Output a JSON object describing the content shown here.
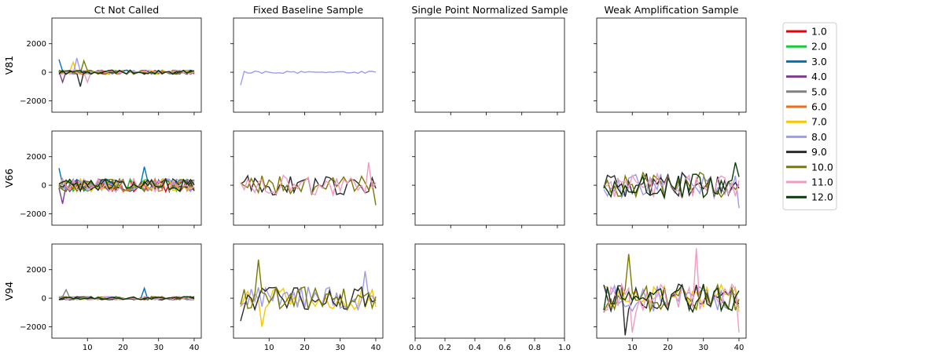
{
  "chart_data": {
    "type": "line",
    "layout": "grid-3x4",
    "columns": [
      "Ct Not Called",
      "Fixed Baseline Sample",
      "Single Point Normalized Sample",
      "Weak Amplification Sample"
    ],
    "rows": [
      "V81",
      "V66",
      "V94"
    ],
    "x_ticks": [
      10,
      20,
      30,
      40
    ],
    "y_ticks": [
      -2000,
      0,
      2000
    ],
    "xlim": [
      0,
      42
    ],
    "ylim": [
      -2800,
      3800
    ],
    "empty_panel_x_ticks": [
      "0.0",
      "0.2",
      "0.4",
      "0.6",
      "0.8",
      "1.0"
    ],
    "x_range": [
      2,
      40
    ],
    "legend": {
      "position": "right",
      "entries": [
        {
          "label": "1.0",
          "color": "#e8000b"
        },
        {
          "label": "2.0",
          "color": "#1ac938"
        },
        {
          "label": "3.0",
          "color": "#0173b2"
        },
        {
          "label": "4.0",
          "color": "#7d3b91"
        },
        {
          "label": "5.0",
          "color": "#808080"
        },
        {
          "label": "6.0",
          "color": "#f06c12"
        },
        {
          "label": "7.0",
          "color": "#f8c600"
        },
        {
          "label": "8.0",
          "color": "#9b9bf0"
        },
        {
          "label": "9.0",
          "color": "#2b2b2b"
        },
        {
          "label": "10.0",
          "color": "#7a7a00"
        },
        {
          "label": "11.0",
          "color": "#f29ac2"
        },
        {
          "label": "12.0",
          "color": "#0a3a0a"
        }
      ]
    },
    "panels": [
      {
        "row": "V81",
        "column": "Ct Not Called",
        "series": [
          "1.0",
          "2.0",
          "3.0",
          "4.0",
          "5.0",
          "6.0",
          "7.0",
          "8.0",
          "9.0",
          "10.0",
          "11.0",
          "12.0"
        ],
        "amplitude": 150,
        "spikes": [
          [
            2,
            900
          ],
          [
            3,
            -700
          ],
          [
            6,
            700
          ],
          [
            7,
            1000
          ],
          [
            8,
            -1000
          ],
          [
            9,
            800
          ],
          [
            10,
            -700
          ]
        ]
      },
      {
        "row": "V81",
        "column": "Fixed Baseline Sample",
        "series": [
          "8.0"
        ],
        "amplitude": 80,
        "spikes": [
          [
            2,
            -900
          ]
        ]
      },
      {
        "row": "V81",
        "column": "Single Point Normalized Sample",
        "series": []
      },
      {
        "row": "V81",
        "column": "Weak Amplification Sample",
        "series": []
      },
      {
        "row": "V66",
        "column": "Ct Not Called",
        "series": [
          "1.0",
          "2.0",
          "3.0",
          "4.0",
          "5.0",
          "6.0",
          "7.0",
          "8.0",
          "9.0",
          "10.0",
          "11.0",
          "12.0"
        ],
        "amplitude": 450,
        "spikes": [
          [
            2,
            1200
          ],
          [
            3,
            -1300
          ],
          [
            26,
            1300
          ]
        ]
      },
      {
        "row": "V66",
        "column": "Fixed Baseline Sample",
        "series": [
          "9.0",
          "10.0",
          "11.0"
        ],
        "amplitude": 700,
        "spikes": [
          [
            38,
            1600
          ],
          [
            40,
            -1400
          ]
        ]
      },
      {
        "row": "V66",
        "column": "Single Point Normalized Sample",
        "series": []
      },
      {
        "row": "V66",
        "column": "Weak Amplification Sample",
        "series": [
          "8.0",
          "9.0",
          "10.0",
          "11.0",
          "12.0"
        ],
        "amplitude": 900,
        "spikes": [
          [
            40,
            -1600
          ],
          [
            39,
            1600
          ]
        ]
      },
      {
        "row": "V94",
        "column": "Ct Not Called",
        "series": [
          "1.0",
          "2.0",
          "3.0",
          "4.0",
          "5.0",
          "6.0",
          "7.0",
          "8.0",
          "9.0",
          "10.0",
          "11.0",
          "12.0"
        ],
        "amplitude": 120,
        "spikes": [
          [
            4,
            600
          ],
          [
            26,
            700
          ]
        ]
      },
      {
        "row": "V94",
        "column": "Fixed Baseline Sample",
        "series": [
          "7.0",
          "8.0",
          "9.0",
          "10.0"
        ],
        "amplitude": 800,
        "spikes": [
          [
            7,
            2700
          ],
          [
            8,
            -2000
          ],
          [
            37,
            1900
          ],
          [
            2,
            -1600
          ]
        ]
      },
      {
        "row": "V94",
        "column": "Single Point Normalized Sample",
        "series": []
      },
      {
        "row": "V94",
        "column": "Weak Amplification Sample",
        "series": [
          "7.0",
          "8.0",
          "9.0",
          "10.0",
          "11.0",
          "12.0"
        ],
        "amplitude": 1000,
        "spikes": [
          [
            28,
            3500
          ],
          [
            9,
            3100
          ],
          [
            8,
            -2600
          ],
          [
            10,
            -2400
          ],
          [
            40,
            -2400
          ]
        ]
      }
    ]
  }
}
